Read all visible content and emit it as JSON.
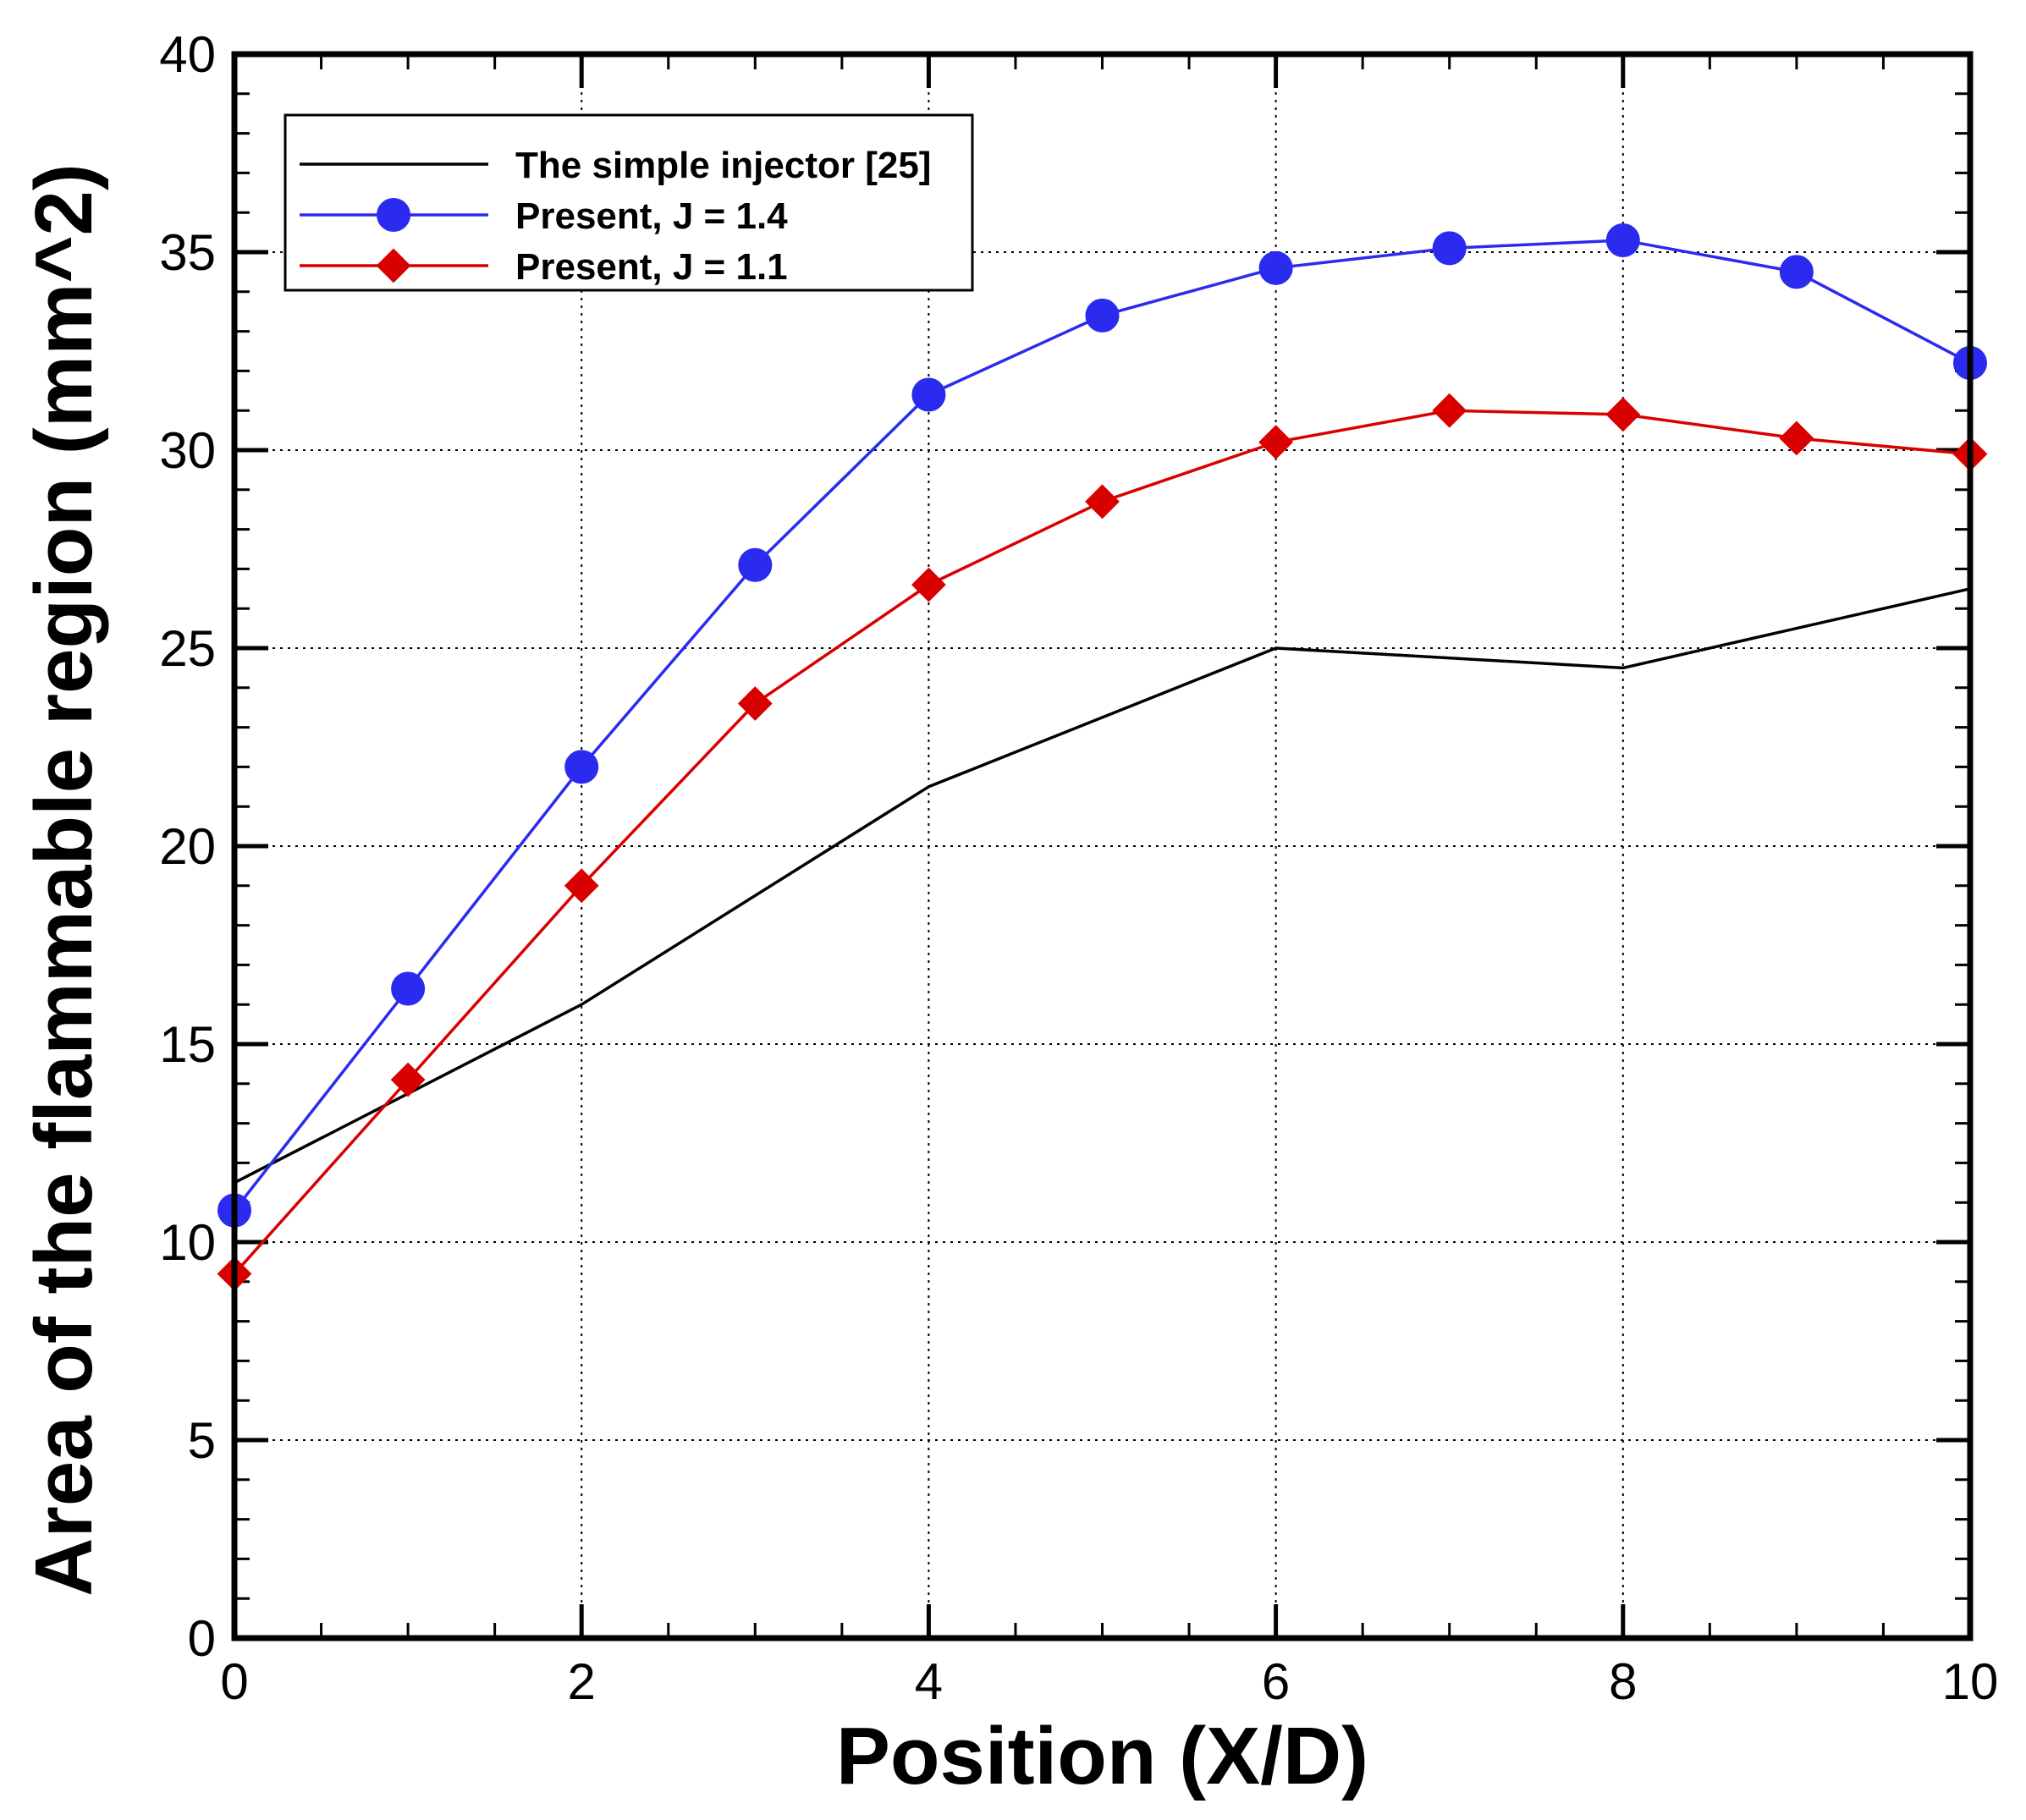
{
  "chart_data": {
    "type": "line",
    "title": "",
    "xlabel": "Position (X/D)",
    "ylabel": "Area of the flammable region (mm^2)",
    "xlim": [
      0,
      10
    ],
    "ylim": [
      0,
      40
    ],
    "xticks": [
      0,
      2,
      4,
      6,
      8,
      10
    ],
    "yticks": [
      0,
      5,
      10,
      15,
      20,
      25,
      30,
      35,
      40
    ],
    "xtick_labels": [
      "0",
      "2",
      "4",
      "6",
      "8",
      "10"
    ],
    "ytick_labels": [
      "0",
      "5",
      "10",
      "15",
      "20",
      "25",
      "30",
      "35",
      "40"
    ],
    "grid": true,
    "legend_position": "top-left",
    "series": [
      {
        "name": "The simple injector [25]",
        "color": "#000000",
        "marker": "none",
        "x": [
          0,
          2,
          4,
          6,
          8,
          10
        ],
        "y": [
          11.5,
          16.0,
          21.5,
          25.0,
          24.5,
          26.5
        ]
      },
      {
        "name": "Present, J = 1.4",
        "color": "#2b2bf0",
        "marker": "circle",
        "x": [
          0,
          1,
          2,
          3,
          4,
          5,
          6,
          7,
          8,
          9,
          10
        ],
        "y": [
          10.8,
          16.4,
          22.0,
          27.1,
          31.4,
          33.4,
          34.6,
          35.1,
          35.3,
          34.5,
          32.2
        ]
      },
      {
        "name": "Present, J = 1.1",
        "color": "#d90000",
        "marker": "diamond",
        "x": [
          0,
          1,
          2,
          3,
          4,
          5,
          6,
          7,
          8,
          9,
          10
        ],
        "y": [
          9.2,
          14.1,
          19.0,
          23.6,
          26.6,
          28.7,
          30.2,
          31.0,
          30.9,
          30.3,
          29.9
        ]
      }
    ]
  }
}
